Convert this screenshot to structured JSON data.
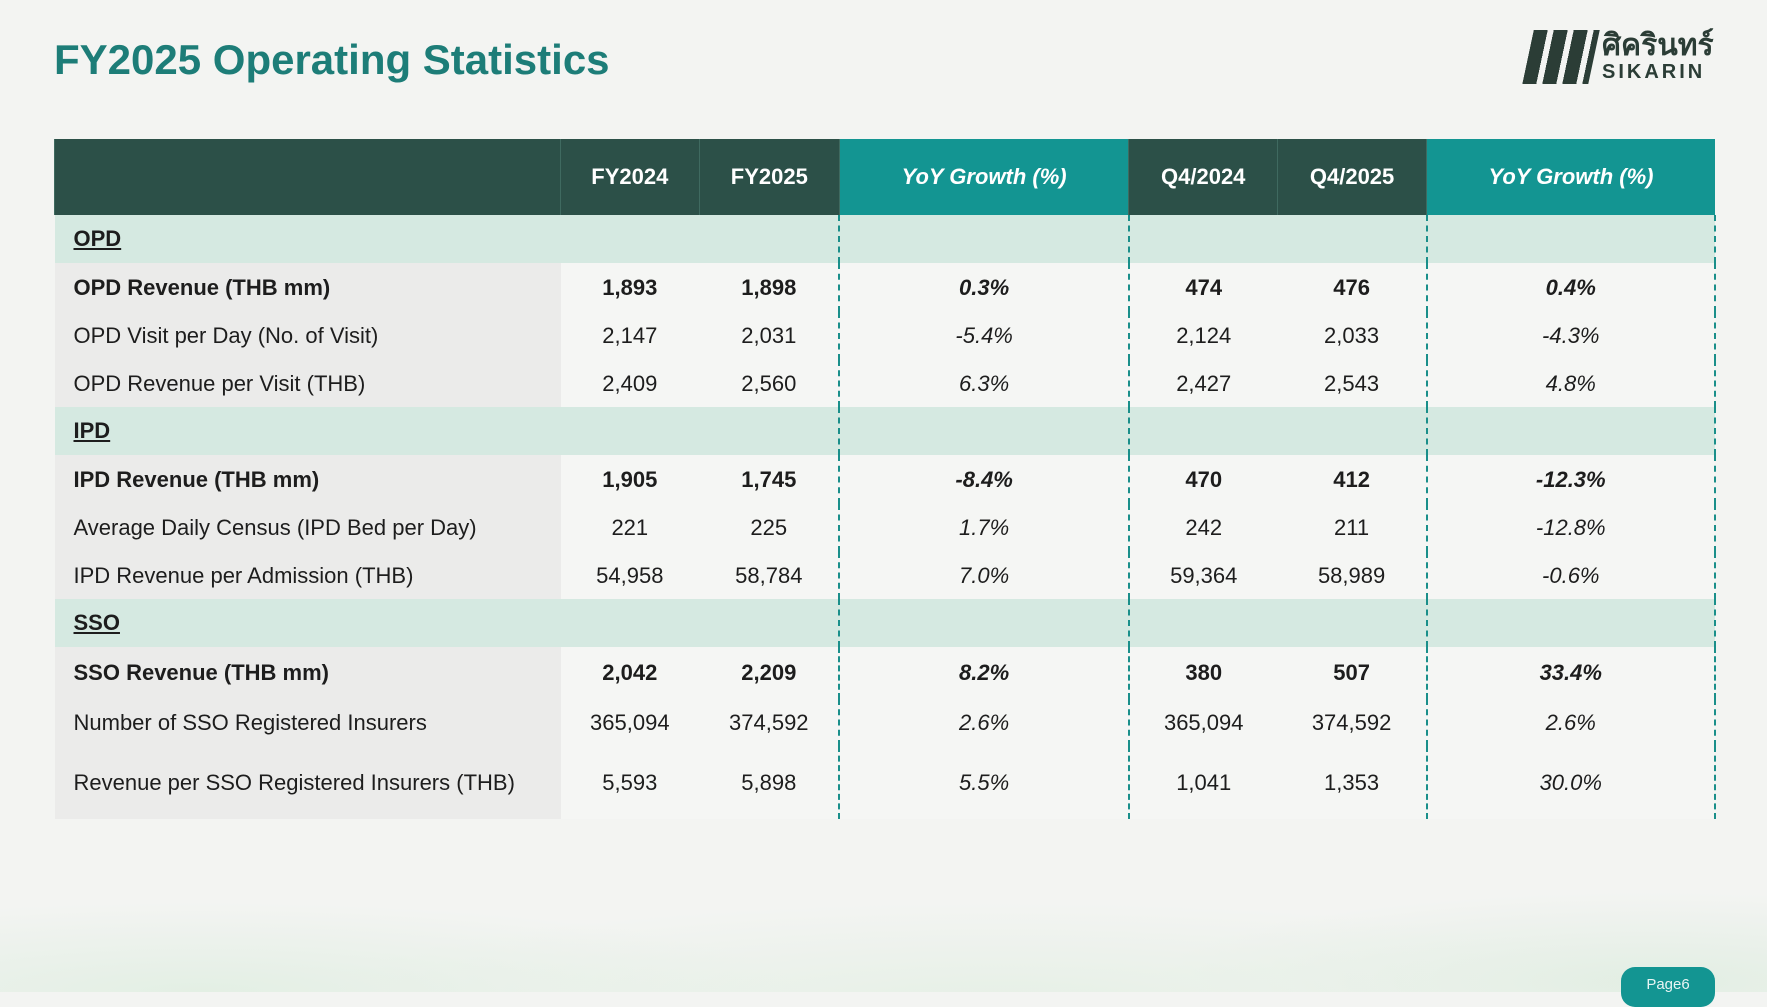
{
  "title": "FY2025 Operating Statistics",
  "logo": {
    "thai": "ศิครินทร์",
    "english": "SIKARIN"
  },
  "headers": [
    "",
    "FY2024",
    "FY2025",
    "YoY Growth (%)",
    "Q4/2024",
    "Q4/2025",
    "YoY Growth (%)"
  ],
  "sections": [
    {
      "name": "OPD",
      "rows": [
        {
          "label": "OPD Revenue (THB mm)",
          "bold": true,
          "values": [
            "1,893",
            "1,898",
            "0.3%",
            "474",
            "476",
            "0.4%"
          ]
        },
        {
          "label": "OPD Visit per Day (No. of Visit)",
          "values": [
            "2,147",
            "2,031",
            "-5.4%",
            "2,124",
            "2,033",
            "-4.3%"
          ]
        },
        {
          "label": "OPD Revenue per Visit (THB)",
          "values": [
            "2,409",
            "2,560",
            "6.3%",
            "2,427",
            "2,543",
            "4.8%"
          ]
        }
      ]
    },
    {
      "name": "IPD",
      "rows": [
        {
          "label": "IPD Revenue (THB mm)",
          "bold": true,
          "values": [
            "1,905",
            "1,745",
            "-8.4%",
            "470",
            "412",
            "-12.3%"
          ]
        },
        {
          "label": "Average Daily Census (IPD Bed per Day)",
          "values": [
            "221",
            "225",
            "1.7%",
            "242",
            "211",
            "-12.8%"
          ]
        },
        {
          "label": "IPD Revenue per Admission (THB)",
          "values": [
            "54,958",
            "58,784",
            "7.0%",
            "59,364",
            "58,989",
            "-0.6%"
          ]
        }
      ]
    },
    {
      "name": "SSO",
      "rows": [
        {
          "label": "SSO Revenue (THB mm)",
          "bold": true,
          "values": [
            "2,042",
            "2,209",
            "8.2%",
            "380",
            "507",
            "33.4%"
          ]
        },
        {
          "label": "Number of SSO Registered Insurers",
          "values": [
            "365,094",
            "374,592",
            "2.6%",
            "365,094",
            "374,592",
            "2.6%"
          ]
        },
        {
          "label": "Revenue per SSO Registered Insurers (THB)",
          "values": [
            "5,593",
            "5,898",
            "5.5%",
            "1,041",
            "1,353",
            "30.0%"
          ]
        }
      ]
    }
  ],
  "page": "Page6"
}
